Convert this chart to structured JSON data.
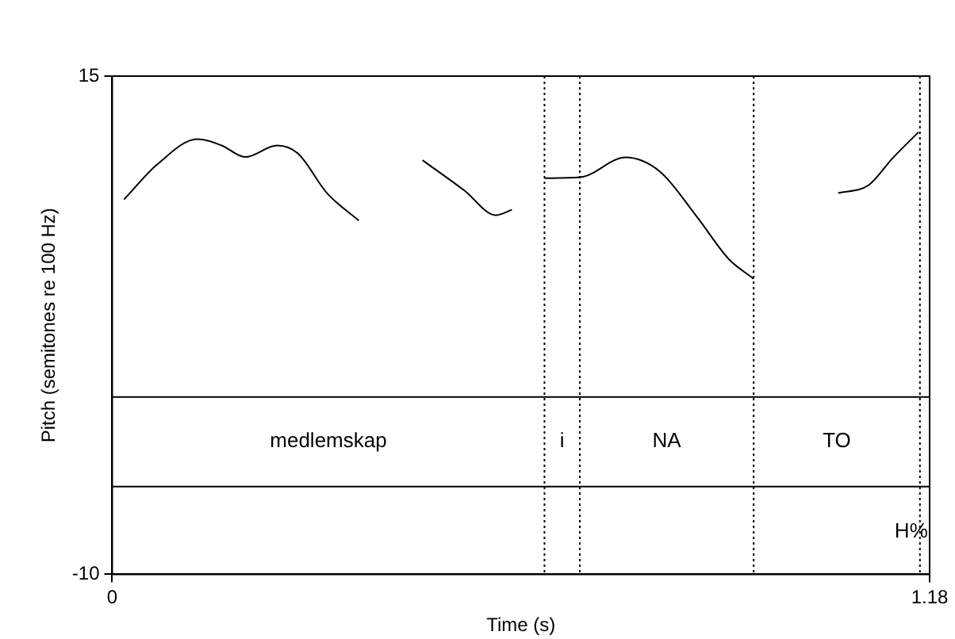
{
  "chart_data": {
    "type": "line",
    "xlabel": "Time (s)",
    "ylabel": "Pitch (semitones re 100 Hz)",
    "xlim": [
      0,
      1.18
    ],
    "xticks": [
      0,
      1.18
    ],
    "ylim": [
      -10,
      15
    ],
    "yticks": [
      -10,
      15
    ],
    "legend": false,
    "marker": "none",
    "line_style": "solid",
    "series": [
      {
        "color": "#000000",
        "x": [
          0.017,
          0.066,
          0.123,
          0.158,
          0.192,
          0.238,
          0.268,
          0.31,
          0.356,
          0.4,
          0.448,
          0.508,
          0.554,
          0.577,
          0.6,
          0.624,
          0.676,
          0.741,
          0.791,
          0.844,
          0.89,
          0.926,
          1.0,
          1.048,
          1.092,
          1.126,
          1.164
        ],
        "values": [
          8.81,
          10.6,
          11.84,
          11.52,
          10.94,
          11.52,
          11.12,
          9.13,
          7.75,
          null,
          10.78,
          9.27,
          8.02,
          8.29,
          null,
          9.88,
          9.93,
          10.92,
          10.2,
          7.94,
          5.82,
          4.83,
          null,
          9.13,
          9.53,
          10.86,
          12.19
        ]
      }
    ],
    "ref_lines": [
      {
        "axis": "x",
        "value": 0.624,
        "line_style": "dotted"
      },
      {
        "axis": "x",
        "value": 0.675,
        "line_style": "dotted"
      },
      {
        "axis": "x",
        "value": 0.926,
        "line_style": "dotted"
      },
      {
        "axis": "x",
        "value": 1.166,
        "line_style": "dotted"
      },
      {
        "axis": "y",
        "value": -1.1,
        "line_style": "solid"
      },
      {
        "axis": "y",
        "value": -5.6,
        "line_style": "solid"
      }
    ],
    "annotations": [
      "medlemskap",
      "i",
      "NA",
      "TO",
      {
        "text": "H%",
        "x": 1.166,
        "y": -7.85
      }
    ]
  }
}
